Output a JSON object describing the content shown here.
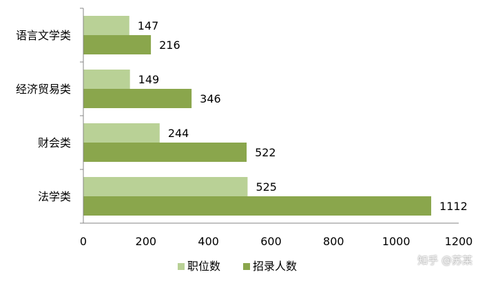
{
  "chart_data": {
    "type": "bar",
    "orientation": "horizontal",
    "categories": [
      "语言文学类",
      "经济贸易类",
      "财会类",
      "法学类"
    ],
    "series": [
      {
        "name": "职位数",
        "values": [
          147,
          149,
          244,
          525
        ],
        "color": "#b9d196"
      },
      {
        "name": "招录人数",
        "values": [
          216,
          346,
          522,
          1112
        ],
        "color": "#8aa64c"
      }
    ],
    "xlim": [
      0,
      1200
    ],
    "xticks": [
      0,
      200,
      400,
      600,
      800,
      1000,
      1200
    ],
    "grid": false,
    "legend_position": "bottom",
    "data_labels": true
  },
  "watermark": "知乎 @苏某"
}
